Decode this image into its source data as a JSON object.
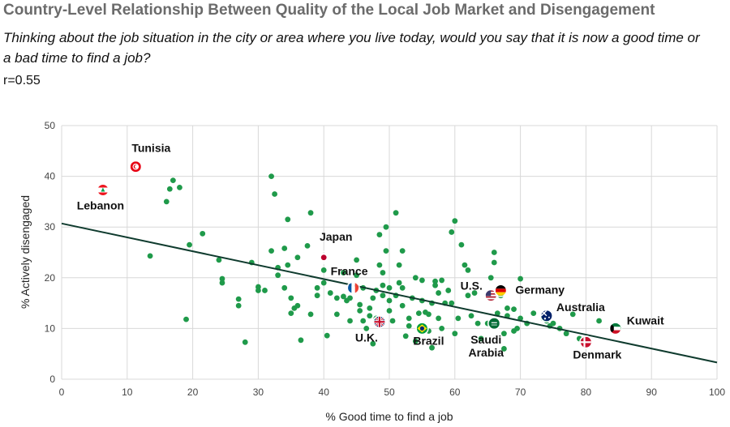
{
  "title": "Country-Level Relationship Between Quality of the Local Job Market and Disengagement",
  "question": "Thinking about the job situation in the city or area where you live today, would you say that it is now a good time or a bad time to find a job?",
  "r_label": "r=0.55",
  "colors": {
    "dot": "#1f9a4a",
    "trend": "#0f3b2e",
    "grid": "#d8d8d8",
    "label": "#111111"
  },
  "chart_data": {
    "type": "scatter",
    "xlabel": "% Good time to find a job",
    "ylabel": "% Actively disengaged",
    "xlim": [
      0,
      100
    ],
    "ylim": [
      0,
      50
    ],
    "x_ticks": [
      0,
      10,
      20,
      30,
      40,
      50,
      60,
      70,
      80,
      90,
      100
    ],
    "y_ticks": [
      0,
      10,
      20,
      30,
      40,
      50
    ],
    "grid": true,
    "trendline": {
      "x": [
        0,
        100
      ],
      "y": [
        30.7,
        3.3
      ]
    },
    "labeled_points": [
      {
        "label": "Tunisia",
        "x": 11.3,
        "y": 41.9,
        "flag": "tunisia"
      },
      {
        "label": "Lebanon",
        "x": 6.3,
        "y": 37.3,
        "flag": "lebanon"
      },
      {
        "label": "Japan",
        "x": 40.0,
        "y": 24.0,
        "flag": "japan"
      },
      {
        "label": "France",
        "x": 44.5,
        "y": 18.0,
        "flag": "france"
      },
      {
        "label": "U.S.",
        "x": 65.5,
        "y": 16.5,
        "flag": "usa"
      },
      {
        "label": "Germany",
        "x": 67.0,
        "y": 17.5,
        "flag": "germany"
      },
      {
        "label": "Australia",
        "x": 74.0,
        "y": 12.5,
        "flag": "australia"
      },
      {
        "label": "Kuwait",
        "x": 84.5,
        "y": 10.0,
        "flag": "kuwait"
      },
      {
        "label": "Denmark",
        "x": 80.0,
        "y": 7.3,
        "flag": "denmark"
      },
      {
        "label": "U.K.",
        "x": 48.5,
        "y": 11.3,
        "flag": "uk"
      },
      {
        "label": "Brazil",
        "x": 55.0,
        "y": 10.0,
        "flag": "brazil"
      },
      {
        "label": "Saudi Arabia",
        "x": 66.0,
        "y": 11.0,
        "flag": "saudi"
      }
    ],
    "points": [
      [
        16.5,
        37.5
      ],
      [
        17,
        39.2
      ],
      [
        18,
        37.8
      ],
      [
        16,
        35
      ],
      [
        21.5,
        28.7
      ],
      [
        19.5,
        26.5
      ],
      [
        13.5,
        24.3
      ],
      [
        19,
        11.8
      ],
      [
        24,
        23.5
      ],
      [
        24.5,
        19.8
      ],
      [
        24.5,
        19
      ],
      [
        27,
        15.8
      ],
      [
        27,
        14.5
      ],
      [
        28,
        7.3
      ],
      [
        29,
        23
      ],
      [
        30,
        18.2
      ],
      [
        30,
        17.5
      ],
      [
        31,
        17.5
      ],
      [
        32,
        40
      ],
      [
        32.5,
        36.5
      ],
      [
        32,
        25.3
      ],
      [
        33,
        22
      ],
      [
        34,
        25.8
      ],
      [
        34.5,
        31.5
      ],
      [
        34.5,
        22.5
      ],
      [
        33,
        20.5
      ],
      [
        34,
        18
      ],
      [
        35,
        16
      ],
      [
        35,
        13
      ],
      [
        35.5,
        14
      ],
      [
        36,
        14.5
      ],
      [
        36.5,
        7.7
      ],
      [
        36,
        24
      ],
      [
        37.5,
        26.3
      ],
      [
        38,
        32.8
      ],
      [
        38,
        12.8
      ],
      [
        39,
        16.5
      ],
      [
        39,
        18
      ],
      [
        40,
        21.5
      ],
      [
        40,
        24.5
      ],
      [
        40,
        19
      ],
      [
        40.5,
        8.6
      ],
      [
        41,
        17
      ],
      [
        42,
        12.8
      ],
      [
        42,
        16
      ],
      [
        43,
        21
      ],
      [
        43,
        16.3
      ],
      [
        43.5,
        15.5
      ],
      [
        44,
        16
      ],
      [
        44,
        11.5
      ],
      [
        45,
        23.5
      ],
      [
        45,
        20.5
      ],
      [
        45.5,
        14.7
      ],
      [
        45.5,
        13.5
      ],
      [
        46,
        18
      ],
      [
        46,
        11.5
      ],
      [
        46.5,
        10
      ],
      [
        47,
        12.5
      ],
      [
        47,
        14
      ],
      [
        47.5,
        16
      ],
      [
        47.5,
        7
      ],
      [
        48,
        17.5
      ],
      [
        48,
        12
      ],
      [
        48.5,
        22.5
      ],
      [
        48.5,
        28.5
      ],
      [
        49.5,
        25.3
      ],
      [
        49.5,
        30
      ],
      [
        49,
        21
      ],
      [
        49,
        18.5
      ],
      [
        49,
        16.5
      ],
      [
        50,
        18
      ],
      [
        50,
        15.5
      ],
      [
        50,
        13.5
      ],
      [
        50.5,
        11.5
      ],
      [
        51,
        32.8
      ],
      [
        51,
        16.5
      ],
      [
        51.5,
        19
      ],
      [
        51.5,
        22.5
      ],
      [
        52,
        25.3
      ],
      [
        52,
        18
      ],
      [
        52,
        14.5
      ],
      [
        52.5,
        8.5
      ],
      [
        53,
        12
      ],
      [
        53,
        10.5
      ],
      [
        53.5,
        16
      ],
      [
        54,
        7.5
      ],
      [
        54,
        20
      ],
      [
        54.5,
        13
      ],
      [
        55,
        15.5
      ],
      [
        55,
        19.5
      ],
      [
        55.5,
        13.2
      ],
      [
        56,
        12.8
      ],
      [
        56,
        9.5
      ],
      [
        56.5,
        15
      ],
      [
        56.5,
        6.2
      ],
      [
        57,
        19.3
      ],
      [
        57,
        18.5
      ],
      [
        57.5,
        17
      ],
      [
        57.5,
        12
      ],
      [
        58,
        19.5
      ],
      [
        58,
        10
      ],
      [
        58.5,
        15
      ],
      [
        59,
        17.5
      ],
      [
        59.5,
        29
      ],
      [
        59.5,
        15
      ],
      [
        60,
        31.2
      ],
      [
        60.5,
        12
      ],
      [
        60,
        9
      ],
      [
        61,
        26.5
      ],
      [
        61.5,
        22.5
      ],
      [
        62,
        21.5
      ],
      [
        62,
        16.5
      ],
      [
        62.5,
        12.5
      ],
      [
        63,
        17
      ],
      [
        63.5,
        11
      ],
      [
        64,
        8
      ],
      [
        65,
        11
      ],
      [
        65.5,
        20
      ],
      [
        66,
        25
      ],
      [
        66,
        23
      ],
      [
        66.5,
        13
      ],
      [
        67,
        16.5
      ],
      [
        67.5,
        9
      ],
      [
        67.5,
        6
      ],
      [
        68,
        14
      ],
      [
        68,
        12.5
      ],
      [
        69,
        13.8
      ],
      [
        69,
        9.5
      ],
      [
        69.5,
        10
      ],
      [
        70,
        12
      ],
      [
        70,
        19.8
      ],
      [
        71,
        11
      ],
      [
        72,
        13
      ],
      [
        73.5,
        12
      ],
      [
        74,
        11.5
      ],
      [
        74.5,
        10.5
      ],
      [
        75,
        11
      ],
      [
        76,
        10
      ],
      [
        77,
        9
      ],
      [
        78,
        12.8
      ],
      [
        79,
        8
      ],
      [
        80,
        7
      ],
      [
        82,
        11.5
      ],
      [
        85,
        10.2
      ]
    ]
  }
}
